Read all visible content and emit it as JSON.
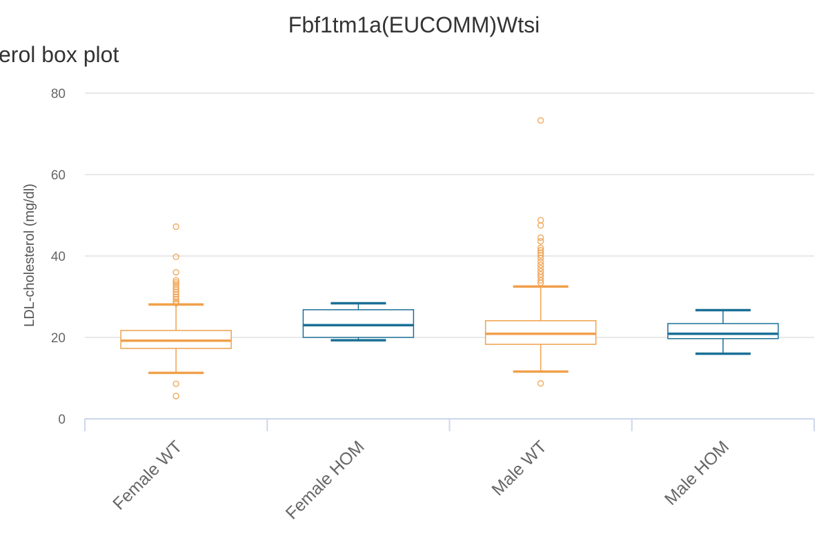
{
  "chart_data": {
    "type": "box",
    "title": "Fbf1tm1a(EUCOMM)Wtsi",
    "subtitle": "erol box plot",
    "xlabel": "",
    "ylabel": "LDL-cholesterol (mg/dl)",
    "ylim": [
      0,
      80
    ],
    "yticks": [
      0,
      20,
      40,
      60,
      80
    ],
    "grid": true,
    "categories": [
      "Female WT",
      "Female HOM",
      "Male WT",
      "Male HOM"
    ],
    "colors": {
      "WT": "#f0a04b",
      "HOM": "#1a6f96"
    },
    "boxes": [
      {
        "category": "Female WT",
        "group": "WT",
        "min": 11.3,
        "q1": 17.3,
        "median": 19.2,
        "q3": 21.7,
        "max": 28.1,
        "outliers": [
          47.2,
          39.8,
          36.0,
          34.0,
          33.5,
          33.0,
          32.4,
          31.8,
          31.2,
          30.6,
          30.0,
          29.4,
          28.8,
          28.4,
          8.6,
          5.6
        ]
      },
      {
        "category": "Female HOM",
        "group": "HOM",
        "min": 19.3,
        "q1": 20.0,
        "median": 23.0,
        "q3": 26.8,
        "max": 28.4,
        "outliers": []
      },
      {
        "category": "Male WT",
        "group": "WT",
        "min": 11.6,
        "q1": 18.3,
        "median": 20.9,
        "q3": 24.1,
        "max": 32.5,
        "outliers": [
          73.3,
          48.8,
          47.5,
          44.5,
          43.6,
          42.0,
          41.4,
          40.8,
          40.2,
          39.5,
          38.6,
          37.8,
          37.0,
          36.2,
          35.5,
          34.8,
          34.0,
          33.4,
          8.7
        ]
      },
      {
        "category": "Male HOM",
        "group": "HOM",
        "min": 16.0,
        "q1": 19.7,
        "median": 20.9,
        "q3": 23.4,
        "max": 26.7,
        "outliers": []
      }
    ]
  }
}
